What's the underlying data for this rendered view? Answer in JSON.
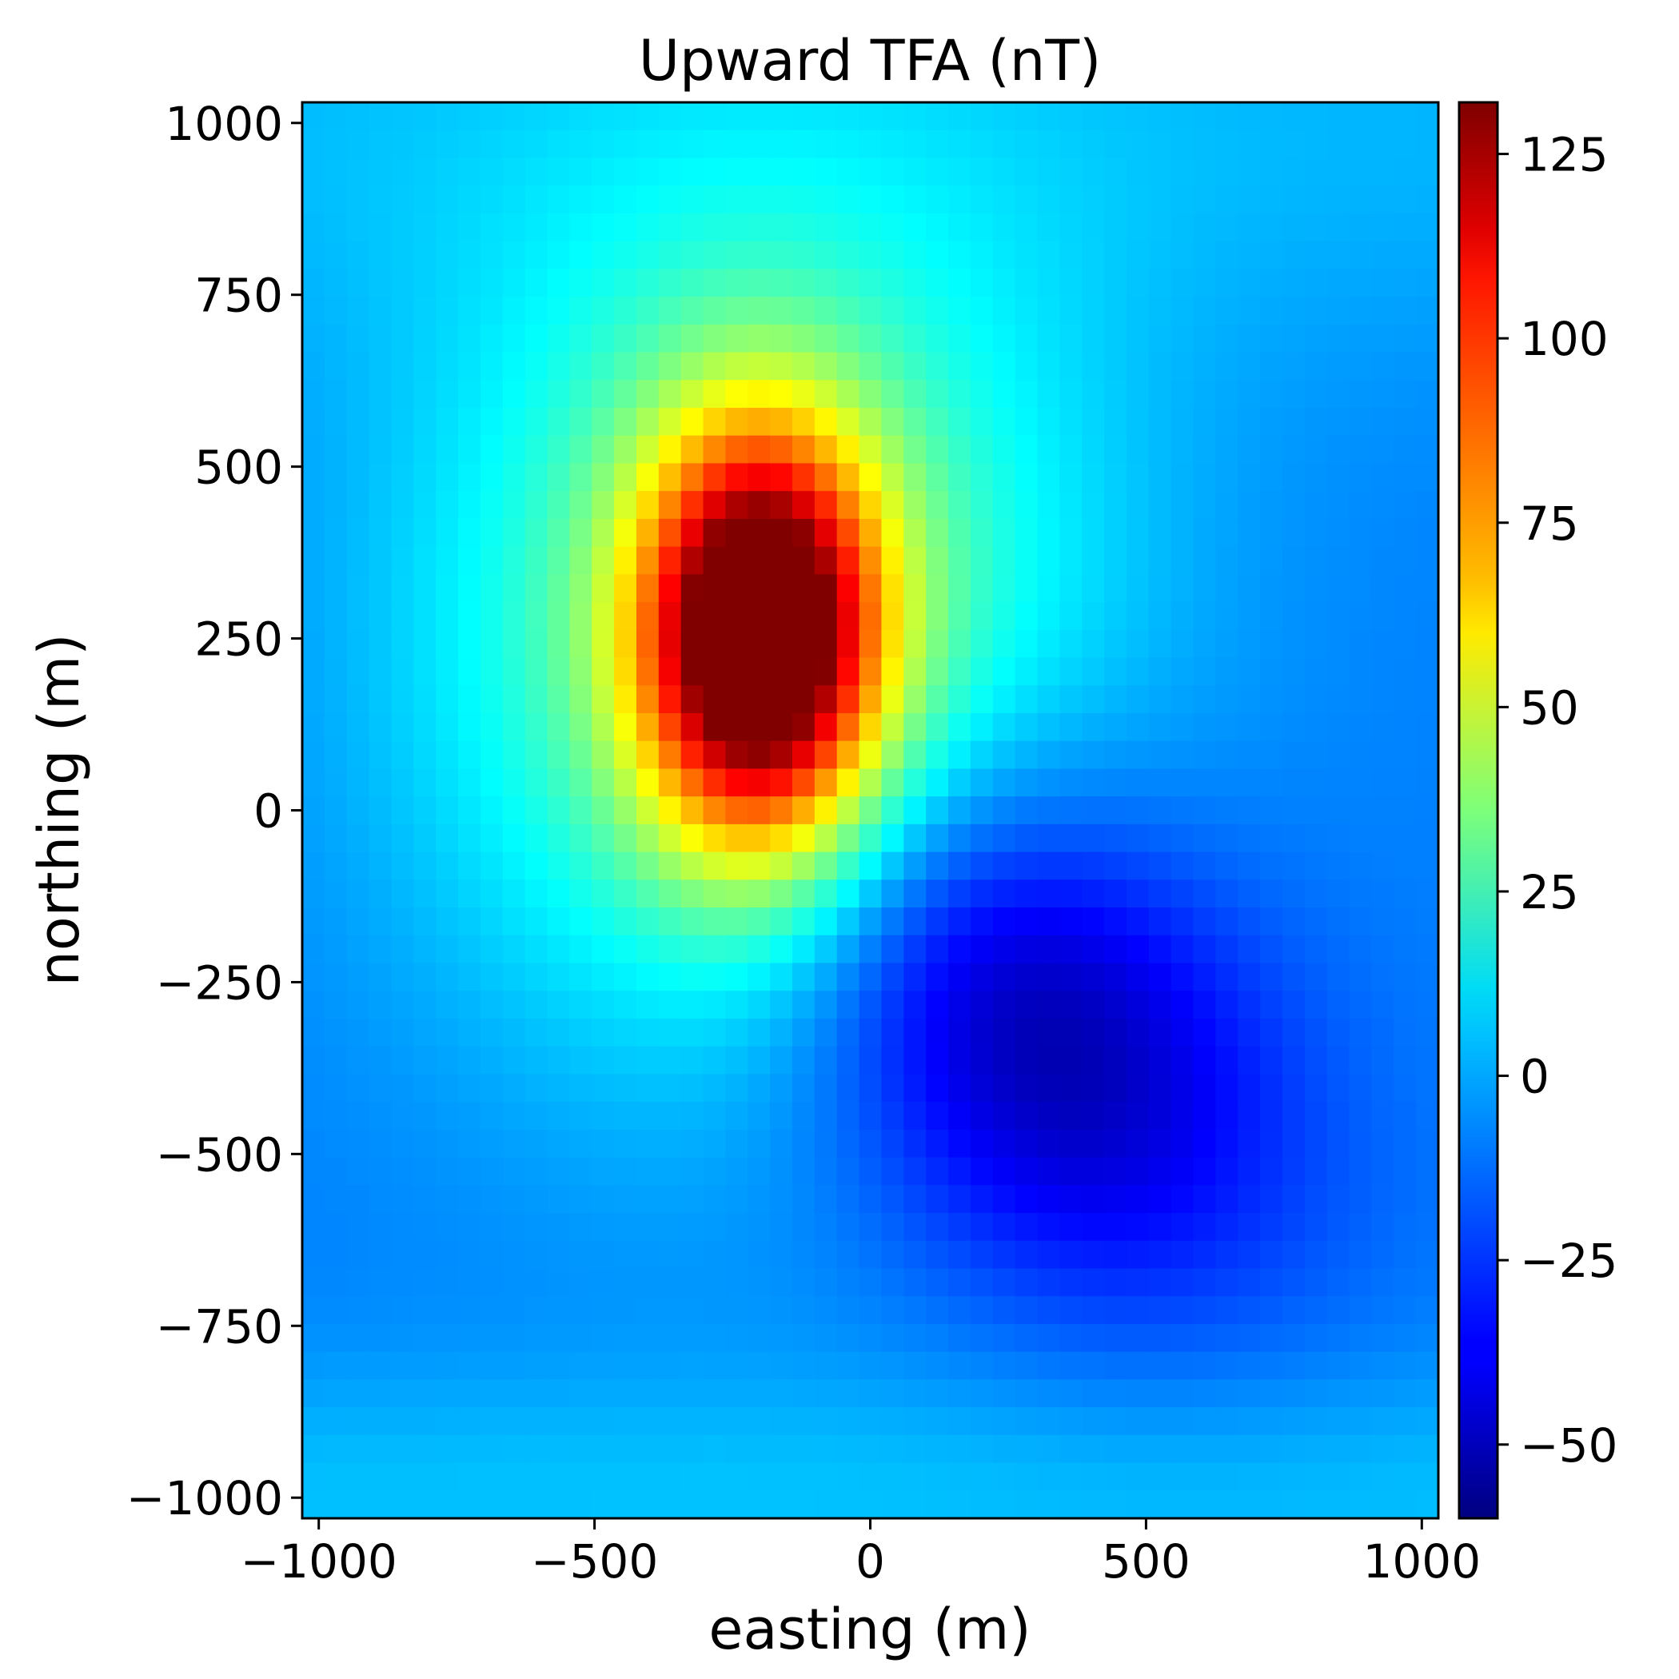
{
  "chart_data": {
    "type": "heatmap",
    "title": "Upward TFA (nT)",
    "xlabel": "easting (m)",
    "ylabel": "northing (m)",
    "xlim": [
      -1030,
      1030
    ],
    "ylim": [
      -1030,
      1030
    ],
    "x_ticks": [
      -1000,
      -500,
      0,
      500,
      1000
    ],
    "x_tick_labels": [
      "−1000",
      "−500",
      "0",
      "500",
      "1000"
    ],
    "y_ticks": [
      -1000,
      -750,
      -500,
      -250,
      0,
      250,
      500,
      750,
      1000
    ],
    "y_tick_labels": [
      "−1000",
      "−750",
      "−500",
      "−250",
      "0",
      "250",
      "500",
      "750",
      "1000"
    ],
    "grid": false,
    "grid_cells": [
      51,
      51
    ],
    "field_description": "dipole anomaly: positive peak of about 130 nT near easting -200 m, northing 250 m; negative trough of about -60 nT near easting 280 m, northing -300 m",
    "anomalies": [
      {
        "label": "positive peak",
        "easting": -200,
        "northing": 250,
        "value": 130
      },
      {
        "label": "negative trough",
        "easting": 280,
        "northing": -300,
        "value": -60
      }
    ],
    "background_value": -12,
    "colormap": "jet",
    "colorbar": {
      "range": [
        -60,
        132
      ],
      "ticks": [
        -50,
        -25,
        0,
        25,
        50,
        75,
        100,
        125
      ],
      "tick_labels": [
        "−50",
        "−25",
        "0",
        "25",
        "50",
        "75",
        "100",
        "125"
      ]
    }
  }
}
